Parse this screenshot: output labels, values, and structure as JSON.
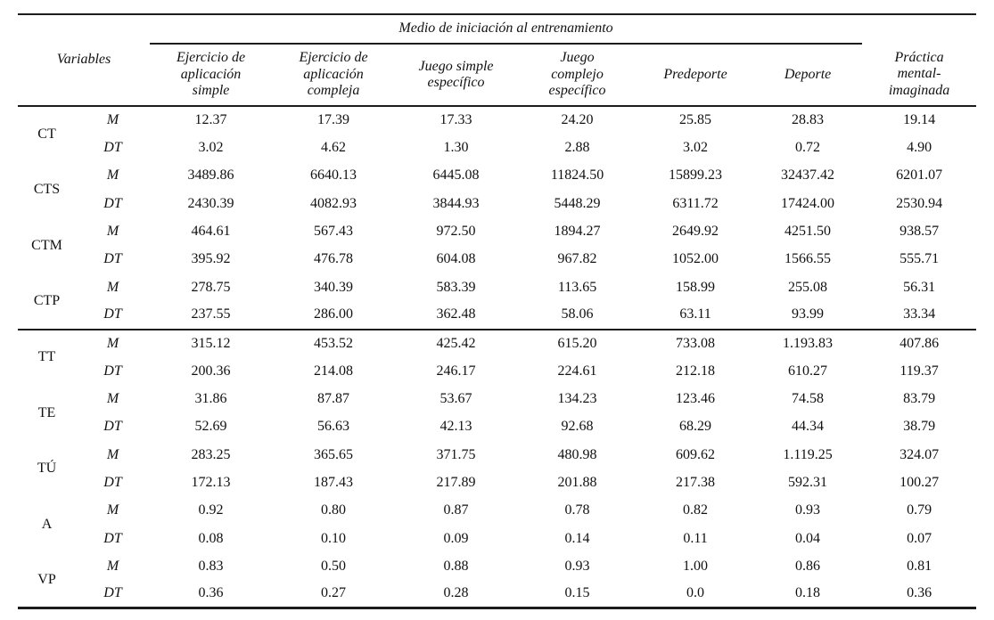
{
  "page": {
    "background": "#ffffff",
    "text_color": "#111111",
    "rule_color": "#1c1c1c"
  },
  "table": {
    "variables_header": "Variables",
    "spanner_header": "Medio de iniciación al entrenamiento",
    "column_headers": [
      "Ejercicio de\naplicación\nsimple",
      "Ejercicio de\naplicación\ncompleja",
      "Juego simple\nespecífico",
      "Juego\ncomplejo\nespecífico",
      "Predeporte",
      "Deporte",
      "Práctica\nmental-\nimaginada"
    ],
    "stat_labels": [
      "M",
      "DT"
    ],
    "groups": [
      {
        "variable": "CT",
        "M": [
          "12.37",
          "17.39",
          "17.33",
          "24.20",
          "25.85",
          "28.83",
          "19.14"
        ],
        "DT": [
          "3.02",
          "4.62",
          "1.30",
          "2.88",
          "3.02",
          "0.72",
          "4.90"
        ],
        "divider_above": false
      },
      {
        "variable": "CTS",
        "M": [
          "3489.86",
          "6640.13",
          "6445.08",
          "11824.50",
          "15899.23",
          "32437.42",
          "6201.07"
        ],
        "DT": [
          "2430.39",
          "4082.93",
          "3844.93",
          "5448.29",
          "6311.72",
          "17424.00",
          "2530.94"
        ],
        "divider_above": false
      },
      {
        "variable": "CTM",
        "M": [
          "464.61",
          "567.43",
          "972.50",
          "1894.27",
          "2649.92",
          "4251.50",
          "938.57"
        ],
        "DT": [
          "395.92",
          "476.78",
          "604.08",
          "967.82",
          "1052.00",
          "1566.55",
          "555.71"
        ],
        "divider_above": false
      },
      {
        "variable": "CTP",
        "M": [
          "278.75",
          "340.39",
          "583.39",
          "113.65",
          "158.99",
          "255.08",
          "56.31"
        ],
        "DT": [
          "237.55",
          "286.00",
          "362.48",
          "58.06",
          "63.11",
          "93.99",
          "33.34"
        ],
        "divider_above": false
      },
      {
        "variable": "TT",
        "M": [
          "315.12",
          "453.52",
          "425.42",
          "615.20",
          "733.08",
          "1.193.83",
          "407.86"
        ],
        "DT": [
          "200.36",
          "214.08",
          "246.17",
          "224.61",
          "212.18",
          "610.27",
          "119.37"
        ],
        "divider_above": true
      },
      {
        "variable": "TE",
        "M": [
          "31.86",
          "87.87",
          "53.67",
          "134.23",
          "123.46",
          "74.58",
          "83.79"
        ],
        "DT": [
          "52.69",
          "56.63",
          "42.13",
          "92.68",
          "68.29",
          "44.34",
          "38.79"
        ],
        "divider_above": false
      },
      {
        "variable": "TÚ",
        "M": [
          "283.25",
          "365.65",
          "371.75",
          "480.98",
          "609.62",
          "1.119.25",
          "324.07"
        ],
        "DT": [
          "172.13",
          "187.43",
          "217.89",
          "201.88",
          "217.38",
          "592.31",
          "100.27"
        ],
        "divider_above": false
      },
      {
        "variable": "A",
        "M": [
          "0.92",
          "0.80",
          "0.87",
          "0.78",
          "0.82",
          "0.93",
          "0.79"
        ],
        "DT": [
          "0.08",
          "0.10",
          "0.09",
          "0.14",
          "0.11",
          "0.04",
          "0.07"
        ],
        "divider_above": false
      },
      {
        "variable": "VP",
        "M": [
          "0.83",
          "0.50",
          "0.88",
          "0.93",
          "1.00",
          "0.86",
          "0.81"
        ],
        "DT": [
          "0.36",
          "0.27",
          "0.28",
          "0.15",
          "0.0",
          "0.18",
          "0.36"
        ],
        "divider_above": false
      }
    ]
  }
}
